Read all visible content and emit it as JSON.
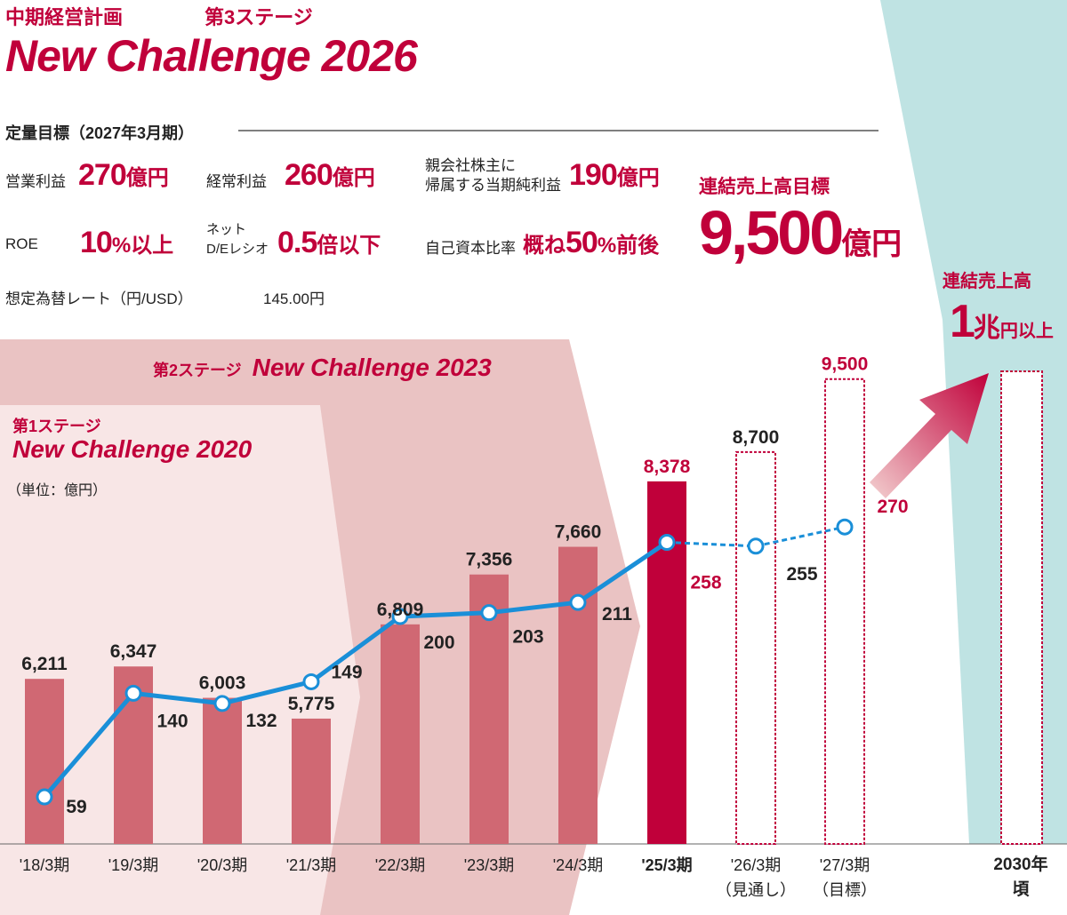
{
  "header": {
    "plan_label": "中期経営計画",
    "stage3_label": "第3ステージ",
    "title": "New Challenge 2026"
  },
  "targets": {
    "heading": "定量目標（2027年3月期）",
    "operating_profit": {
      "label": "営業利益",
      "value": "270",
      "unit": "億円"
    },
    "ordinary_profit": {
      "label": "経常利益",
      "value": "260",
      "unit": "億円"
    },
    "net_profit": {
      "label_line1": "親会社株主に",
      "label_line2": "帰属する当期純利益",
      "value": "190",
      "unit": "億円"
    },
    "roe": {
      "label": "ROE",
      "value": "10",
      "unit": "%以上"
    },
    "de_ratio": {
      "label_line1": "ネット",
      "label_line2": "D/Eレシオ",
      "value": "0.5",
      "unit": "倍以下"
    },
    "equity_ratio": {
      "label": "自己資本比率",
      "prefix": "概ね",
      "value": "50",
      "unit": "%前後"
    },
    "sales_target": {
      "label": "連結売上高目標",
      "value": "9,500",
      "unit": "億円"
    },
    "fx_rate": {
      "label": "想定為替レート（円/USD）",
      "value": "145.00円"
    }
  },
  "stages": {
    "stage1_label": "第1ステージ",
    "stage1_name": "New Challenge 2020",
    "stage2_label": "第2ステージ",
    "stage2_name": "New Challenge 2023",
    "unit_note": "（単位：億円）"
  },
  "long_term": {
    "label": "連結売上高",
    "value": "1",
    "unit_big": "兆",
    "unit_small": "円以上",
    "period_line1": "2030年",
    "period_line2": "頃"
  },
  "colors": {
    "accent": "#c0003a",
    "bar_past": "#d06873",
    "stage1_bg": "#f8e6e6",
    "stage2_bg": "#eac3c3",
    "teal_bg": "#bfe3e3",
    "line": "#1a8fd8"
  },
  "chart_data": {
    "type": "bar",
    "categories": [
      "'18/3期",
      "'19/3期",
      "'20/3期",
      "'21/3期",
      "'22/3期",
      "'23/3期",
      "'24/3期",
      "'25/3期",
      "'26/3期",
      "'27/3期"
    ],
    "category_notes": [
      "",
      "",
      "",
      "",
      "",
      "",
      "",
      "",
      "（見通し）",
      "（目標）"
    ],
    "series": [
      {
        "name": "連結売上高",
        "values": [
          6211,
          6347,
          6003,
          5775,
          6809,
          7356,
          7660,
          8378,
          8700,
          9500
        ],
        "labels": [
          "6,211",
          "6,347",
          "6,003",
          "5,775",
          "6,809",
          "7,356",
          "7,660",
          "8,378",
          "8,700",
          "9,500"
        ],
        "kind": [
          "actual",
          "actual",
          "actual",
          "actual",
          "actual",
          "actual",
          "actual",
          "current",
          "forecast",
          "target"
        ]
      },
      {
        "name": "営業利益",
        "values": [
          59,
          140,
          132,
          149,
          200,
          203,
          211,
          258,
          255,
          270
        ],
        "kind": [
          "actual",
          "actual",
          "actual",
          "actual",
          "actual",
          "actual",
          "actual",
          "actual",
          "forecast",
          "target"
        ]
      }
    ],
    "title": "New Challenge 2026",
    "ylabel": "億円",
    "ylim": [
      0,
      10000
    ]
  }
}
